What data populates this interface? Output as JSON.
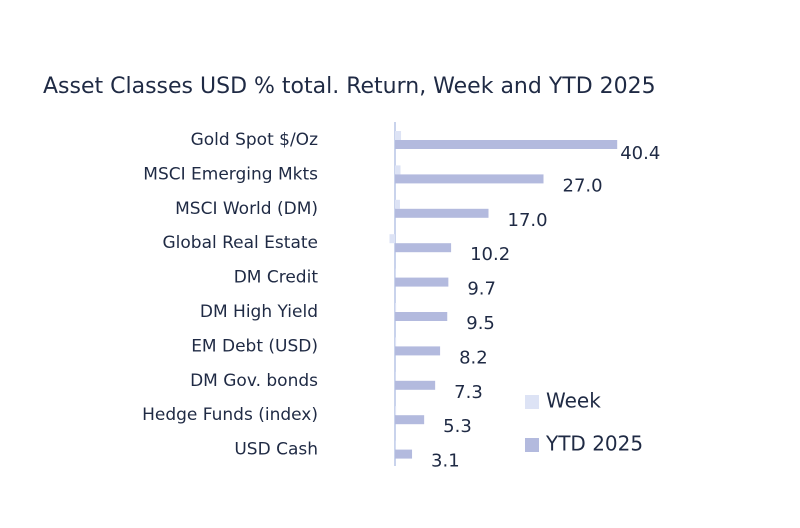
{
  "chart_data": {
    "type": "bar",
    "orientation": "horizontal",
    "title": "Asset Classes USD % total. Return, Week and YTD 2025",
    "categories": [
      "Gold Spot   $/Oz",
      "MSCI Emerging Mkts",
      "MSCI World (DM)",
      "Global Real Estate",
      "DM Credit",
      "DM High Yield",
      "EM Debt (USD)",
      "DM Gov. bonds",
      "Hedge Funds (index)",
      "USD Cash"
    ],
    "series": [
      {
        "name": "Week",
        "color": "#dde3f5",
        "values": [
          1.1,
          1.0,
          0.9,
          -1.0,
          0.1,
          0.2,
          0.2,
          0.1,
          0.2,
          0.1
        ]
      },
      {
        "name": "YTD 2025",
        "color": "#b3bade",
        "values": [
          40.4,
          27.0,
          17.0,
          10.2,
          9.7,
          9.5,
          8.2,
          7.3,
          5.3,
          3.1
        ],
        "value_labels": [
          "40.4",
          "27.0",
          "17.0",
          "10.2",
          "9.7",
          "9.5",
          "8.2",
          "7.3",
          "5.3",
          "3.1"
        ]
      }
    ]
  }
}
